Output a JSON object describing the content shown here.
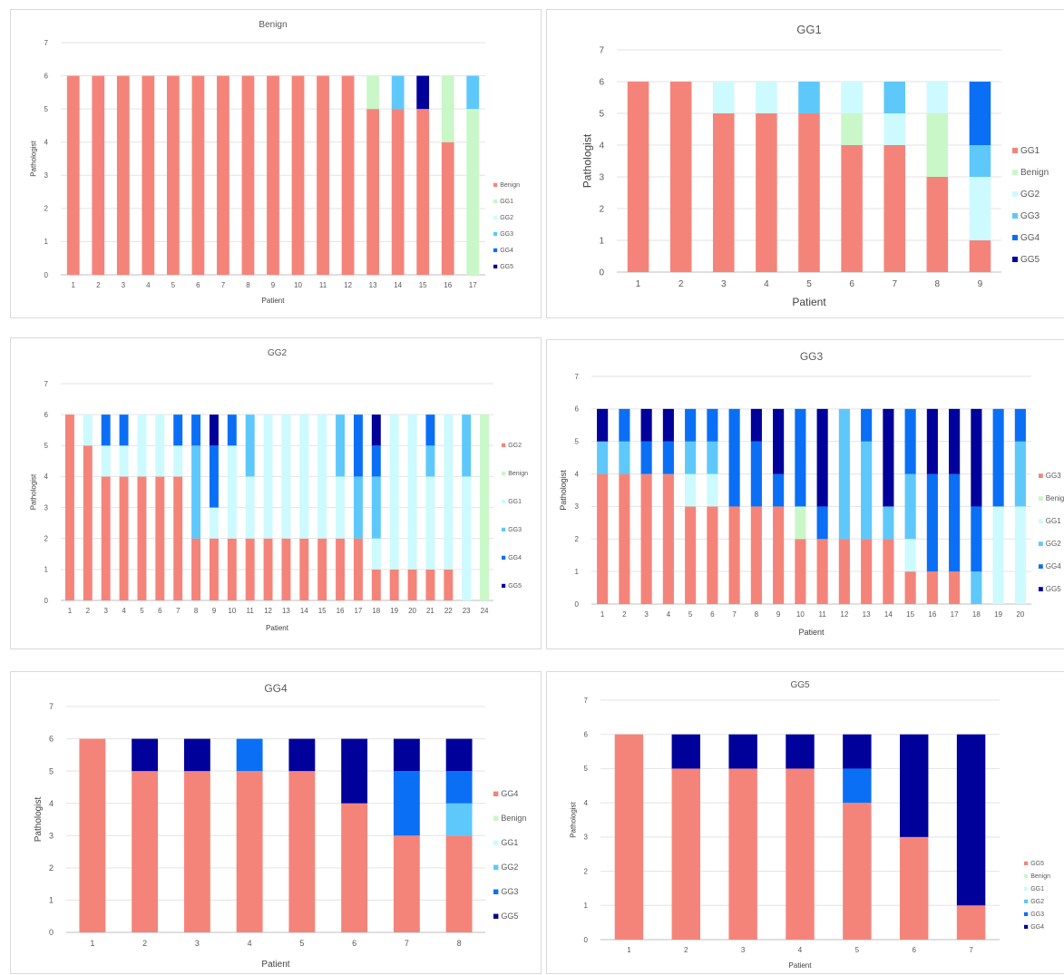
{
  "colors": {
    "GG1_main": "#f4847a",
    "Benign_alt": "#c9f7c8",
    "GG1_alt": "#ccfaff",
    "GG2_alt": "#5ec8fb",
    "GG3_alt": "#0a6ff5",
    "GG4_alt": "#1a3be0",
    "GG5_alt": "#00009b"
  },
  "chart_data": [
    {
      "type": "bar",
      "stacked": true,
      "title": "Benign",
      "xlabel": "Patient",
      "ylabel": "Pathologist",
      "ylim": [
        0,
        7
      ],
      "yticks": [
        0,
        1,
        2,
        3,
        4,
        5,
        6,
        7
      ],
      "grid": true,
      "legend_position": "right",
      "categories": [
        "1",
        "2",
        "3",
        "4",
        "5",
        "6",
        "7",
        "8",
        "9",
        "10",
        "11",
        "12",
        "13",
        "14",
        "15",
        "16",
        "17"
      ],
      "series": [
        {
          "name": "Benign",
          "color": "#f4847a",
          "values": [
            6,
            6,
            6,
            6,
            6,
            6,
            6,
            6,
            6,
            6,
            6,
            6,
            5,
            5,
            5,
            4,
            0
          ]
        },
        {
          "name": "GG1",
          "color": "#c9f7c8",
          "values": [
            0,
            0,
            0,
            0,
            0,
            0,
            0,
            0,
            0,
            0,
            0,
            0,
            1,
            0,
            0,
            2,
            5
          ]
        },
        {
          "name": "GG2",
          "color": "#ccfaff",
          "values": [
            0,
            0,
            0,
            0,
            0,
            0,
            0,
            0,
            0,
            0,
            0,
            0,
            0,
            0,
            0,
            0,
            0
          ]
        },
        {
          "name": "GG3",
          "color": "#5ec8fb",
          "values": [
            0,
            0,
            0,
            0,
            0,
            0,
            0,
            0,
            0,
            0,
            0,
            0,
            0,
            1,
            0,
            0,
            1
          ]
        },
        {
          "name": "GG4",
          "color": "#0a6ff5",
          "values": [
            0,
            0,
            0,
            0,
            0,
            0,
            0,
            0,
            0,
            0,
            0,
            0,
            0,
            0,
            0,
            0,
            0
          ]
        },
        {
          "name": "GG5",
          "color": "#00009b",
          "values": [
            0,
            0,
            0,
            0,
            0,
            0,
            0,
            0,
            0,
            0,
            0,
            0,
            0,
            0,
            1,
            0,
            0
          ]
        }
      ]
    },
    {
      "type": "bar",
      "stacked": true,
      "title": "GG1",
      "xlabel": "Patient",
      "ylabel": "Pathologist",
      "ylim": [
        0,
        7
      ],
      "yticks": [
        0,
        1,
        2,
        3,
        4,
        5,
        6,
        7
      ],
      "grid": true,
      "legend_position": "right",
      "categories": [
        "1",
        "2",
        "3",
        "4",
        "5",
        "6",
        "7",
        "8",
        "9"
      ],
      "series": [
        {
          "name": "GG1",
          "color": "#f4847a",
          "values": [
            6,
            6,
            5,
            5,
            5,
            4,
            4,
            3,
            1
          ]
        },
        {
          "name": "Benign",
          "color": "#c9f7c8",
          "values": [
            0,
            0,
            0,
            0,
            0,
            1,
            0,
            2,
            0
          ]
        },
        {
          "name": "GG2",
          "color": "#ccfaff",
          "values": [
            0,
            0,
            1,
            1,
            0,
            1,
            1,
            1,
            2
          ]
        },
        {
          "name": "GG3",
          "color": "#5ec8fb",
          "values": [
            0,
            0,
            0,
            0,
            1,
            0,
            1,
            0,
            1
          ]
        },
        {
          "name": "GG4",
          "color": "#0a6ff5",
          "values": [
            0,
            0,
            0,
            0,
            0,
            0,
            0,
            0,
            2
          ]
        },
        {
          "name": "GG5",
          "color": "#00009b",
          "values": [
            0,
            0,
            0,
            0,
            0,
            0,
            0,
            0,
            0
          ]
        }
      ]
    },
    {
      "type": "bar",
      "stacked": true,
      "title": "GG2",
      "xlabel": "Patient",
      "ylabel": "Pathologist",
      "ylim": [
        0,
        7
      ],
      "yticks": [
        0,
        1,
        2,
        3,
        4,
        5,
        6,
        7
      ],
      "grid": true,
      "legend_position": "right",
      "categories": [
        "1",
        "2",
        "3",
        "4",
        "5",
        "6",
        "7",
        "8",
        "9",
        "10",
        "11",
        "12",
        "13",
        "14",
        "15",
        "16",
        "17",
        "18",
        "19",
        "20",
        "21",
        "22",
        "23",
        "24"
      ],
      "series": [
        {
          "name": "GG2",
          "color": "#f4847a",
          "values": [
            6,
            5,
            4,
            4,
            4,
            4,
            4,
            2,
            2,
            2,
            2,
            2,
            2,
            2,
            2,
            2,
            2,
            1,
            1,
            1,
            1,
            1,
            0,
            0
          ]
        },
        {
          "name": "Benign",
          "color": "#c9f7c8",
          "values": [
            0,
            0,
            0,
            0,
            0,
            0,
            0,
            0,
            0,
            0,
            0,
            0,
            0,
            0,
            0,
            0,
            0,
            0,
            0,
            0,
            0,
            0,
            0,
            6
          ]
        },
        {
          "name": "GG1",
          "color": "#ccfaff",
          "values": [
            0,
            1,
            1,
            1,
            2,
            2,
            1,
            0,
            1,
            3,
            2,
            4,
            4,
            4,
            4,
            2,
            0,
            1,
            5,
            5,
            3,
            5,
            4,
            0
          ]
        },
        {
          "name": "GG3",
          "color": "#5ec8fb",
          "values": [
            0,
            0,
            0,
            0,
            0,
            0,
            0,
            3,
            0,
            0,
            2,
            0,
            0,
            0,
            0,
            2,
            2,
            2,
            0,
            0,
            1,
            0,
            2,
            0
          ]
        },
        {
          "name": "GG4",
          "color": "#0a6ff5",
          "values": [
            0,
            0,
            1,
            1,
            0,
            0,
            1,
            1,
            2,
            1,
            0,
            0,
            0,
            0,
            0,
            0,
            2,
            1,
            0,
            0,
            1,
            0,
            0,
            0
          ]
        },
        {
          "name": "GG5",
          "color": "#00009b",
          "values": [
            0,
            0,
            0,
            0,
            0,
            0,
            0,
            0,
            1,
            0,
            0,
            0,
            0,
            0,
            0,
            0,
            0,
            1,
            0,
            0,
            0,
            0,
            0,
            0
          ]
        }
      ]
    },
    {
      "type": "bar",
      "stacked": true,
      "title": "GG3",
      "xlabel": "Patient",
      "ylabel": "Pathologist",
      "ylim": [
        0,
        7
      ],
      "yticks": [
        0,
        1,
        2,
        3,
        4,
        5,
        6,
        7
      ],
      "grid": true,
      "legend_position": "right",
      "categories": [
        "1",
        "2",
        "3",
        "4",
        "5",
        "6",
        "7",
        "8",
        "9",
        "10",
        "11",
        "12",
        "13",
        "14",
        "15",
        "16",
        "17",
        "18",
        "19",
        "20"
      ],
      "series": [
        {
          "name": "GG3",
          "color": "#f4847a",
          "values": [
            4,
            4,
            4,
            4,
            3,
            3,
            3,
            3,
            3,
            2,
            2,
            2,
            2,
            2,
            1,
            1,
            1,
            0,
            0,
            0
          ]
        },
        {
          "name": "Benign",
          "color": "#c9f7c8",
          "values": [
            0,
            0,
            0,
            0,
            0,
            0,
            0,
            0,
            0,
            1,
            0,
            0,
            0,
            0,
            0,
            0,
            0,
            0,
            0,
            0
          ]
        },
        {
          "name": "GG1",
          "color": "#ccfaff",
          "values": [
            0,
            0,
            0,
            0,
            1,
            1,
            0,
            0,
            0,
            0,
            0,
            0,
            0,
            0,
            1,
            0,
            0,
            0,
            3,
            3
          ]
        },
        {
          "name": "GG2",
          "color": "#5ec8fb",
          "values": [
            1,
            1,
            0,
            0,
            1,
            1,
            0,
            0,
            0,
            0,
            0,
            4,
            3,
            1,
            2,
            0,
            0,
            1,
            0,
            2
          ]
        },
        {
          "name": "GG4",
          "color": "#0a6ff5",
          "values": [
            0,
            1,
            1,
            1,
            1,
            1,
            3,
            2,
            1,
            3,
            1,
            0,
            1,
            0,
            2,
            3,
            3,
            2,
            3,
            1
          ]
        },
        {
          "name": "GG5",
          "color": "#00009b",
          "values": [
            1,
            0,
            1,
            1,
            0,
            0,
            0,
            1,
            2,
            0,
            3,
            0,
            0,
            3,
            0,
            2,
            2,
            3,
            0,
            0
          ]
        }
      ]
    },
    {
      "type": "bar",
      "stacked": true,
      "title": "GG4",
      "xlabel": "Patient",
      "ylabel": "Pathologist",
      "ylim": [
        0,
        7
      ],
      "yticks": [
        0,
        1,
        2,
        3,
        4,
        5,
        6,
        7
      ],
      "grid": true,
      "legend_position": "right",
      "categories": [
        "1",
        "2",
        "3",
        "4",
        "5",
        "6",
        "7",
        "8"
      ],
      "series": [
        {
          "name": "GG4",
          "color": "#f4847a",
          "values": [
            6,
            5,
            5,
            5,
            5,
            4,
            3,
            3
          ]
        },
        {
          "name": "Benign",
          "color": "#c9f7c8",
          "values": [
            0,
            0,
            0,
            0,
            0,
            0,
            0,
            0
          ]
        },
        {
          "name": "GG1",
          "color": "#ccfaff",
          "values": [
            0,
            0,
            0,
            0,
            0,
            0,
            0,
            0
          ]
        },
        {
          "name": "GG2",
          "color": "#5ec8fb",
          "values": [
            0,
            0,
            0,
            0,
            0,
            0,
            0,
            1
          ]
        },
        {
          "name": "GG3",
          "color": "#0a6ff5",
          "values": [
            0,
            0,
            0,
            1,
            0,
            0,
            2,
            1
          ]
        },
        {
          "name": "GG5",
          "color": "#00009b",
          "values": [
            0,
            1,
            1,
            0,
            1,
            2,
            1,
            1
          ]
        }
      ]
    },
    {
      "type": "bar",
      "stacked": true,
      "title": "GG5",
      "xlabel": "Patient",
      "ylabel": "Pathologist",
      "ylim": [
        0,
        7
      ],
      "yticks": [
        0,
        1,
        2,
        3,
        4,
        5,
        6,
        7
      ],
      "grid": true,
      "legend_position": "right",
      "categories": [
        "1",
        "2",
        "3",
        "4",
        "5",
        "6",
        "7"
      ],
      "series": [
        {
          "name": "GG5",
          "color": "#f4847a",
          "values": [
            6,
            5,
            5,
            5,
            4,
            3,
            1
          ]
        },
        {
          "name": "Benign",
          "color": "#c9f7c8",
          "values": [
            0,
            0,
            0,
            0,
            0,
            0,
            0
          ]
        },
        {
          "name": "GG1",
          "color": "#ccfaff",
          "values": [
            0,
            0,
            0,
            0,
            0,
            0,
            0
          ]
        },
        {
          "name": "GG2",
          "color": "#5ec8fb",
          "values": [
            0,
            0,
            0,
            0,
            0,
            0,
            0
          ]
        },
        {
          "name": "GG3",
          "color": "#0a6ff5",
          "values": [
            0,
            0,
            0,
            0,
            1,
            0,
            0
          ]
        },
        {
          "name": "GG4",
          "color": "#00009b",
          "values": [
            0,
            1,
            1,
            1,
            1,
            3,
            5
          ]
        }
      ]
    }
  ]
}
